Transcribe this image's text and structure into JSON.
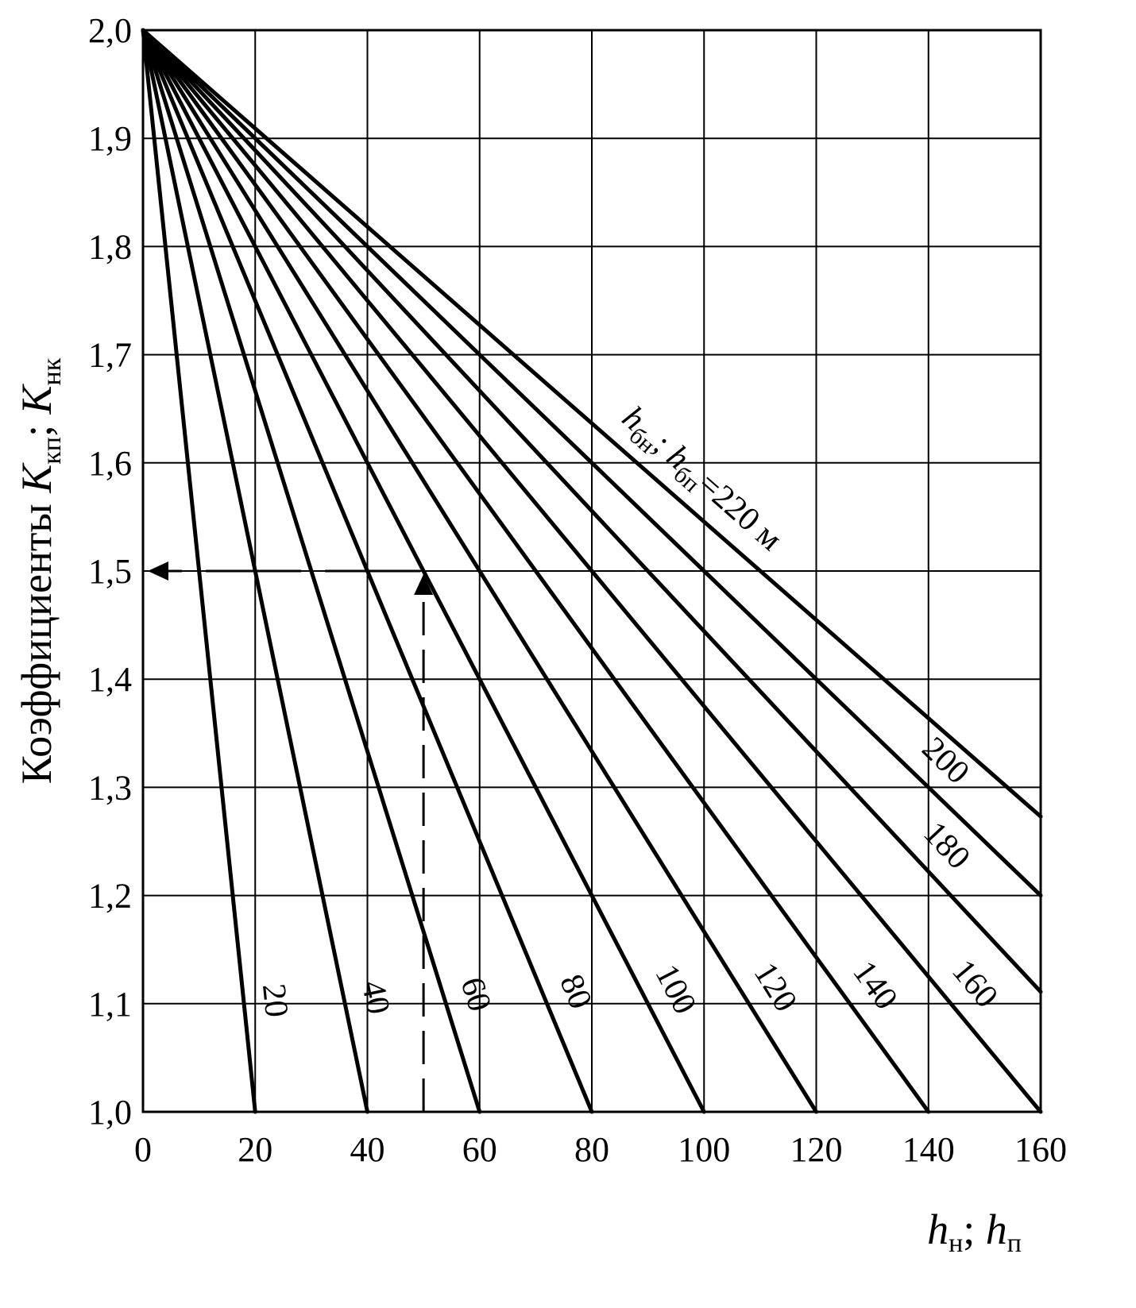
{
  "chart_data": {
    "type": "line",
    "xlabel": "h",
    "xlabel_sub1": "н",
    "xlabel_sep": "; ",
    "xlabel_b": "h",
    "xlabel_sub2": "п",
    "ylabel": "Коэффициенты ",
    "ylabel_k1": "K",
    "ylabel_k1_sub": "кп",
    "ylabel_sep": "; ",
    "ylabel_k2": "K",
    "ylabel_k2_sub": "нк",
    "xlim": [
      0,
      160
    ],
    "ylim": [
      1.0,
      2.0
    ],
    "x_ticks": [
      "0",
      "20",
      "40",
      "60",
      "80",
      "100",
      "120",
      "140",
      "160"
    ],
    "y_ticks": [
      "1,0",
      "1,1",
      "1,2",
      "1,3",
      "1,4",
      "1,5",
      "1,6",
      "1,7",
      "1,8",
      "1,9",
      "2,0"
    ],
    "grid": true,
    "series": [
      {
        "label": "20",
        "x": [
          0,
          20
        ],
        "y": [
          2.0,
          1.0
        ]
      },
      {
        "label": "40",
        "x": [
          0,
          40
        ],
        "y": [
          2.0,
          1.0
        ]
      },
      {
        "label": "60",
        "x": [
          0,
          60
        ],
        "y": [
          2.0,
          1.0
        ]
      },
      {
        "label": "80",
        "x": [
          0,
          80
        ],
        "y": [
          2.0,
          1.0
        ]
      },
      {
        "label": "100",
        "x": [
          0,
          100
        ],
        "y": [
          2.0,
          1.0
        ]
      },
      {
        "label": "120",
        "x": [
          0,
          120
        ],
        "y": [
          2.0,
          1.0
        ]
      },
      {
        "label": "140",
        "x": [
          0,
          140
        ],
        "y": [
          2.0,
          1.0
        ]
      },
      {
        "label": "160",
        "x": [
          0,
          160
        ],
        "y": [
          2.0,
          1.0
        ]
      },
      {
        "label": "180",
        "x": [
          0,
          160
        ],
        "y": [
          2.0,
          1.111
        ]
      },
      {
        "label": "200",
        "x": [
          0,
          160
        ],
        "y": [
          2.0,
          1.2
        ]
      },
      {
        "label": "220 м",
        "x": [
          0,
          160
        ],
        "y": [
          2.0,
          1.273
        ]
      }
    ],
    "series_label_prefix": {
      "a": "h",
      "a_sub": "бн",
      "sep": "; ",
      "b": "h",
      "b_sub": "бп",
      "eq": "=220 м"
    },
    "example_guide": {
      "x": 50,
      "y": 1.5,
      "style": "dashed",
      "arrow": "left"
    }
  }
}
